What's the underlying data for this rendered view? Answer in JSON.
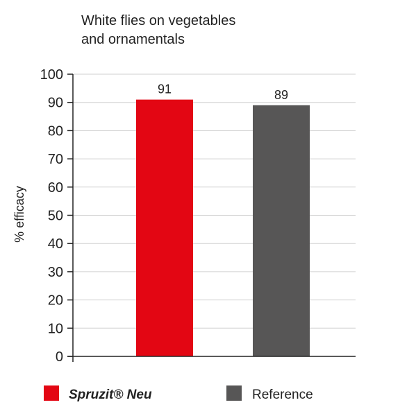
{
  "chart_data": {
    "type": "bar",
    "title_lines": [
      "White flies on vegetables",
      "and ornamentals"
    ],
    "ylabel": "% efficacy",
    "xlabel": "",
    "ylim": [
      0,
      100
    ],
    "yticks": [
      0,
      10,
      20,
      30,
      40,
      50,
      60,
      70,
      80,
      90,
      100
    ],
    "grid": true,
    "legend_position": "bottom",
    "categories": [
      "Spruzit® Neu",
      "Reference"
    ],
    "series": [
      {
        "name": "Spruzit® Neu",
        "value": 91,
        "value_label": "91",
        "color": "#e30613",
        "legend_style": "bold-italic"
      },
      {
        "name": "Reference",
        "value": 89,
        "value_label": "89",
        "color": "#575656",
        "legend_style": "normal"
      }
    ],
    "grid_color": "#d0d0d0",
    "axis_color": "#222222"
  }
}
